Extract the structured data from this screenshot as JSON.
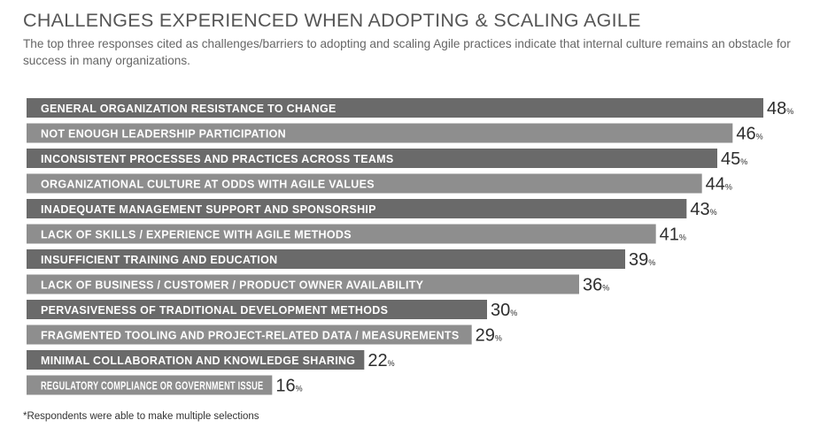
{
  "header": {
    "title": "CHALLENGES EXPERIENCED WHEN ADOPTING & SCALING AGILE",
    "subtitle": "The top three responses cited as challenges/barriers to adopting and scaling Agile practices indicate that internal culture remains an obstacle for success in many organizations."
  },
  "footnote": "*Respondents were able to make multiple selections",
  "colors": {
    "bar_dark": "#6a6a6a",
    "bar_light": "#8e8e8e",
    "label_text": "#ffffff",
    "value_text": "#2e2e2e"
  },
  "chart_data": {
    "type": "bar",
    "orientation": "horizontal",
    "categories": [
      "GENERAL ORGANIZATION RESISTANCE TO CHANGE",
      "NOT ENOUGH LEADERSHIP PARTICIPATION",
      "INCONSISTENT PROCESSES AND PRACTICES ACROSS TEAMS",
      "ORGANIZATIONAL CULTURE AT ODDS WITH AGILE VALUES",
      "INADEQUATE MANAGEMENT SUPPORT AND SPONSORSHIP",
      "LACK OF SKILLS / EXPERIENCE WITH AGILE METHODS",
      "INSUFFICIENT TRAINING AND EDUCATION",
      "LACK OF BUSINESS / CUSTOMER / PRODUCT OWNER AVAILABILITY",
      "PERVASIVENESS OF TRADITIONAL DEVELOPMENT METHODS",
      "FRAGMENTED TOOLING AND PROJECT-RELATED DATA / MEASUREMENTS",
      "MINIMAL COLLABORATION AND KNOWLEDGE SHARING",
      "REGULATORY COMPLIANCE OR GOVERNMENT ISSUE"
    ],
    "values": [
      48,
      46,
      45,
      44,
      43,
      41,
      39,
      36,
      30,
      29,
      22,
      16
    ],
    "value_suffix": "%",
    "xlim": [
      0,
      48
    ],
    "grid": false,
    "legend": "none"
  }
}
